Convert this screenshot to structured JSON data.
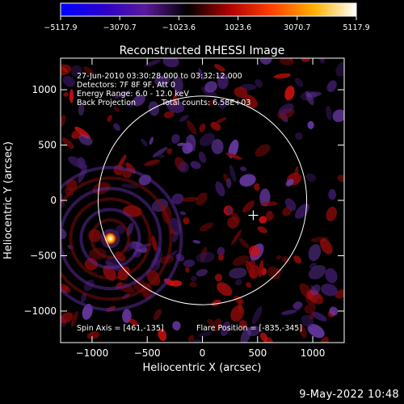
{
  "chart_data": {
    "type": "heatmap",
    "title": "Reconstructed RHESSI Image",
    "xlabel": "Heliocentric X (arcsec)",
    "ylabel": "Heliocentric Y (arcsec)",
    "xlim": [
      -1285,
      1285
    ],
    "ylim": [
      -1285,
      1285
    ],
    "xticks": [
      -1000,
      -500,
      0,
      500,
      1000
    ],
    "yticks": [
      1000,
      500,
      0,
      -500,
      -1000
    ],
    "colorbar": {
      "ticks": [
        "-5117.9",
        "-3070.7",
        "-1023.6",
        "1023.6",
        "3070.7",
        "5117.9"
      ],
      "colormap": [
        "#0000ff",
        "#2a00cc",
        "#5a1a9a",
        "#000000",
        "#b00000",
        "#ff4000",
        "#ffb000",
        "#ffffff"
      ]
    },
    "annotations": {
      "time_range": "27-Jun-2010 03:30:28.000 to 03:32:12.000",
      "detectors": "Detectors: 7F 8F 9F, Att 0",
      "energy_range": "Energy Range: 6.0 - 12.0 keV",
      "method": "Back Projection",
      "total_counts": "Total counts: 6.58E+03",
      "spin_axis": "Spin Axis = [461,-135]",
      "flare_position": "Flare Position = [-835,-345]"
    },
    "solar_disk": {
      "center": [
        0,
        0
      ],
      "radius_arcsec": 945
    },
    "spin_axis_marker": [
      461,
      -135
    ],
    "flare_source": {
      "x": -835,
      "y": -345
    }
  },
  "footer": {
    "timestamp": "9-May-2022 10:48"
  }
}
